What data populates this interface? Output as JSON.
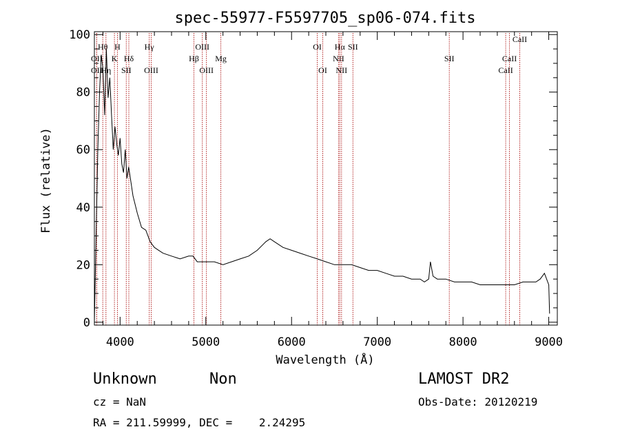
{
  "chart_data": {
    "type": "line",
    "title": "spec-55977-F5597705_sp06-074.fits",
    "xlabel": "Wavelength (Å)",
    "ylabel": "Flux (relative)",
    "xlim": [
      3700,
      9100
    ],
    "ylim": [
      -1,
      101
    ],
    "x_ticks": [
      4000,
      5000,
      6000,
      7000,
      8000,
      9000
    ],
    "y_ticks": [
      0,
      20,
      40,
      60,
      80,
      100
    ],
    "grid": false,
    "line_color": "#000000",
    "marker_color": "#b22222",
    "series": [
      {
        "x": [
          3700,
          3720,
          3740,
          3760,
          3780,
          3800,
          3820,
          3840,
          3860,
          3880,
          3900,
          3920,
          3940,
          3960,
          3980,
          4000,
          4020,
          4040,
          4060,
          4080,
          4100,
          4150,
          4200,
          4250,
          4300,
          4350,
          4400,
          4450,
          4500,
          4600,
          4700,
          4800,
          4850,
          4900,
          4950,
          5000,
          5100,
          5200,
          5300,
          5400,
          5500,
          5600,
          5700,
          5750,
          5800,
          5900,
          6000,
          6100,
          6200,
          6300,
          6400,
          6500,
          6600,
          6700,
          6800,
          6900,
          7000,
          7100,
          7200,
          7300,
          7400,
          7500,
          7550,
          7600,
          7620,
          7650,
          7700,
          7800,
          7900,
          8000,
          8100,
          8200,
          8300,
          8400,
          8450,
          8500,
          8600,
          8700,
          8800,
          8850,
          8900,
          8950,
          9000,
          9010
        ],
        "y": [
          0,
          30,
          60,
          80,
          93,
          88,
          72,
          95,
          78,
          85,
          72,
          60,
          68,
          62,
          58,
          64,
          55,
          52,
          60,
          50,
          54,
          44,
          38,
          33,
          32,
          28,
          26,
          25,
          24,
          23,
          22,
          23,
          23,
          21,
          21,
          21,
          21,
          20,
          21,
          22,
          23,
          25,
          28,
          29,
          28,
          26,
          25,
          24,
          23,
          22,
          21,
          20,
          20,
          20,
          19,
          18,
          18,
          17,
          16,
          16,
          15,
          15,
          14,
          15,
          21,
          16,
          15,
          15,
          14,
          14,
          14,
          13,
          13,
          13,
          13,
          13,
          13,
          14,
          14,
          14,
          15,
          17,
          13,
          3
        ]
      }
    ],
    "line_markers": [
      {
        "label": "OII",
        "x": 3727,
        "row": 2
      },
      {
        "label": "OII",
        "x": 3727,
        "row": 3
      },
      {
        "label": "Hθ",
        "x": 3798,
        "row": 1
      },
      {
        "label": "Hη",
        "x": 3835,
        "row": 3
      },
      {
        "label": "K",
        "x": 3934,
        "row": 2
      },
      {
        "label": "H",
        "x": 3969,
        "row": 1
      },
      {
        "label": "SII",
        "x": 4072,
        "row": 3
      },
      {
        "label": "Hδ",
        "x": 4102,
        "row": 2
      },
      {
        "label": "Hγ",
        "x": 4340,
        "row": 1
      },
      {
        "label": "OIII",
        "x": 4363,
        "row": 3
      },
      {
        "label": "Hβ",
        "x": 4861,
        "row": 2
      },
      {
        "label": "OIII",
        "x": 4959,
        "row": 1
      },
      {
        "label": "OIII",
        "x": 5007,
        "row": 3
      },
      {
        "label": "Mg",
        "x": 5175,
        "row": 2
      },
      {
        "label": "OI",
        "x": 6300,
        "row": 1
      },
      {
        "label": "OI",
        "x": 6364,
        "row": 3
      },
      {
        "label": "NII",
        "x": 6548,
        "row": 2
      },
      {
        "label": "Hα",
        "x": 6563,
        "row": 1
      },
      {
        "label": "NII",
        "x": 6583,
        "row": 3
      },
      {
        "label": "SII",
        "x": 6716,
        "row": 1
      },
      {
        "label": "SII",
        "x": 7840,
        "row": 2
      },
      {
        "label": "CaII",
        "x": 8498,
        "row": 3
      },
      {
        "label": "CaII",
        "x": 8542,
        "row": 2
      },
      {
        "label": "CaII",
        "x": 8662,
        "row": 0
      }
    ]
  },
  "info": {
    "class_label": "Unknown",
    "subclass_label": "Non",
    "survey": "LAMOST DR2",
    "cz": "cz = NaN",
    "obs_date": "Obs-Date: 20120219",
    "radec": "RA = 211.59999, DEC =    2.24295"
  }
}
